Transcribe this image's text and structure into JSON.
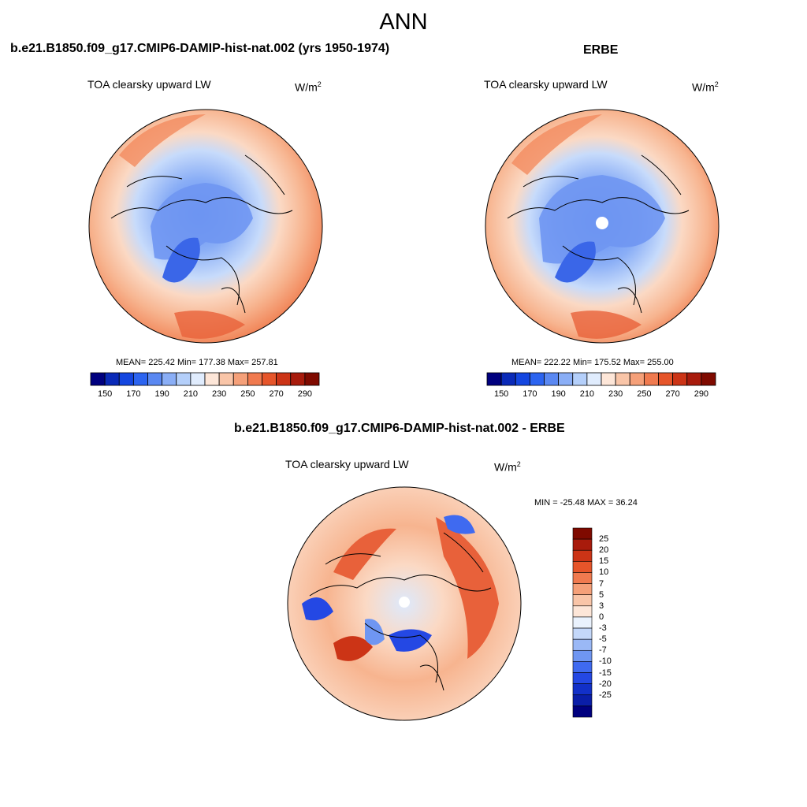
{
  "season": "ANN",
  "panels": [
    {
      "id": "model",
      "case_title": "b.e21.B1850.f09_g17.CMIP6-DAMIP-hist-nat.002 (yrs 1950-1974)",
      "variable": "TOA clearsky upward LW",
      "units_base": "W/m",
      "units_exp": "2",
      "stats_text": "MEAN= 225.42  Min= 177.38  Max= 257.81",
      "mean": 225.42,
      "min": 177.38,
      "max": 257.81
    },
    {
      "id": "obs",
      "case_title": "ERBE",
      "variable": "TOA clearsky upward LW",
      "units_base": "W/m",
      "units_exp": "2",
      "stats_text": "MEAN= 222.22  Min= 175.52  Max= 255.00",
      "mean": 222.22,
      "min": 175.52,
      "max": 255.0
    }
  ],
  "absolute_colorbar": {
    "colors": [
      "#00007f",
      "#0a2ab8",
      "#1446e0",
      "#2c64f0",
      "#5a88f2",
      "#8aaef6",
      "#b4cffa",
      "#e0ecfd",
      "#fde6d8",
      "#f9c5a8",
      "#f5a079",
      "#f07a4f",
      "#e6552a",
      "#cc3416",
      "#a81b0c",
      "#7f0a00"
    ],
    "labels": [
      "150",
      "170",
      "190",
      "210",
      "230",
      "250",
      "270",
      "290"
    ]
  },
  "diff_panel": {
    "case_title": "b.e21.B1850.f09_g17.CMIP6-DAMIP-hist-nat.002 - ERBE",
    "variable": "TOA clearsky upward LW",
    "units_base": "W/m",
    "units_exp": "2",
    "minmax_text": "MIN = -25.48 MAX =  36.24",
    "min": -25.48,
    "max": 36.24
  },
  "diff_colorbar": {
    "colors": [
      "#7f0a00",
      "#a81b0c",
      "#cc3416",
      "#e6552a",
      "#f07a4f",
      "#f5a079",
      "#f9c5a8",
      "#fde6d8",
      "#eaf2fd",
      "#c4d8fa",
      "#9ab8f6",
      "#6f96f2",
      "#3f6af0",
      "#2448e4",
      "#1230c8",
      "#0a1ea8",
      "#00007f"
    ],
    "labels": [
      "25",
      "20",
      "15",
      "10",
      "7",
      "5",
      "3",
      "0",
      "-3",
      "-5",
      "-7",
      "-10",
      "-15",
      "-20",
      "-25"
    ]
  },
  "field_colors": {
    "deep_blue": "#3a66e8",
    "mid_blue": "#6f96f2",
    "light_blue": "#b4cffa",
    "pale_blue": "#dde9fc",
    "pale_orange": "#fbd9c4",
    "light_orange": "#f7b48f",
    "orange": "#f28b5f",
    "red_orange": "#e8613a"
  }
}
